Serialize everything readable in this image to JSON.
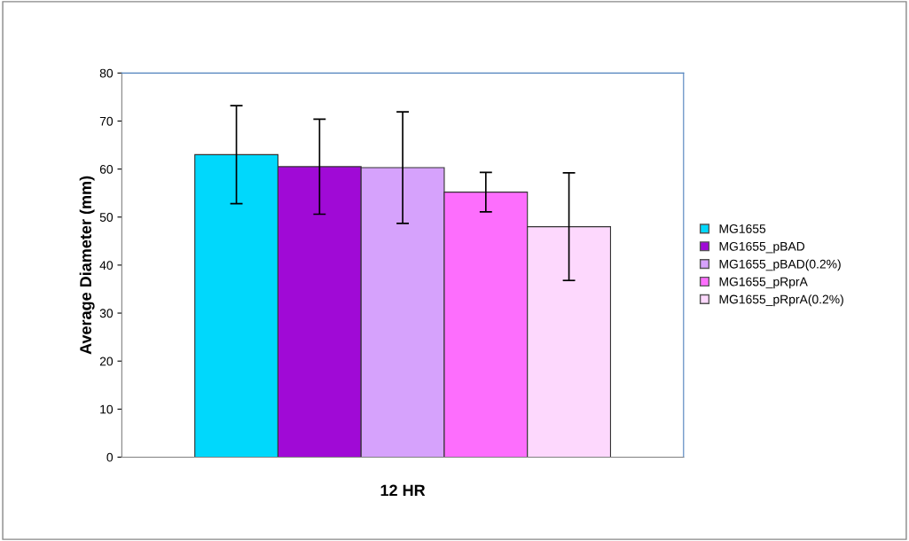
{
  "chart_data": {
    "type": "bar",
    "categories": [
      "12 HR"
    ],
    "ylabel": "Average Diameter (mm)",
    "ylim": [
      0,
      80
    ],
    "yticks": [
      0,
      10,
      20,
      30,
      40,
      50,
      60,
      70,
      80
    ],
    "grid": false,
    "legend": "right",
    "series": [
      {
        "name": "MG1655",
        "color": "#00d8fc",
        "values": [
          63.0
        ],
        "errors": [
          10.2
        ]
      },
      {
        "name": "MG1655_pBAD",
        "color": "#a00ad6",
        "values": [
          60.5
        ],
        "errors": [
          9.9
        ]
      },
      {
        "name": "MG1655_pBAD(0.2%)",
        "color": "#d6a2fc",
        "values": [
          60.3
        ],
        "errors": [
          11.6
        ]
      },
      {
        "name": "MG1655_pRprA",
        "color": "#fd6efd",
        "values": [
          55.2
        ],
        "errors": [
          4.1
        ]
      },
      {
        "name": "MG1655_pRprA(0.2%)",
        "color": "#fdd8fd",
        "values": [
          48.0
        ],
        "errors": [
          11.2
        ]
      }
    ]
  }
}
